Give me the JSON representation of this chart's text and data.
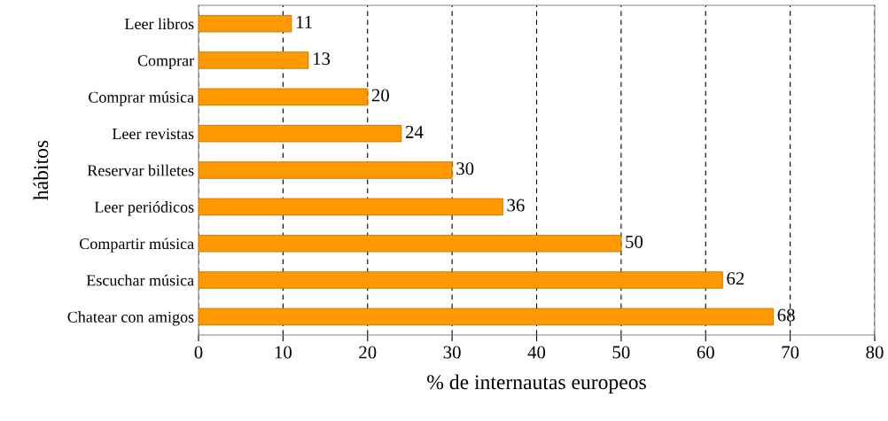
{
  "chart_data": {
    "type": "bar",
    "orientation": "horizontal",
    "xlabel": "% de internautas europeos",
    "ylabel": "hábitos",
    "categories": [
      "Leer libros",
      "Comprar",
      "Comprar música",
      "Leer revistas",
      "Reservar billetes",
      "Leer periódicos",
      "Compartir música",
      "Escuchar música",
      "Chatear con amigos"
    ],
    "values": [
      11,
      13,
      20,
      24,
      30,
      36,
      50,
      62,
      68
    ],
    "color": "#ff9900",
    "xlim": [
      0,
      80
    ],
    "xticks": [
      0,
      10,
      20,
      30,
      40,
      50,
      60,
      70,
      80
    ],
    "grid": "x",
    "data_labels": true
  }
}
